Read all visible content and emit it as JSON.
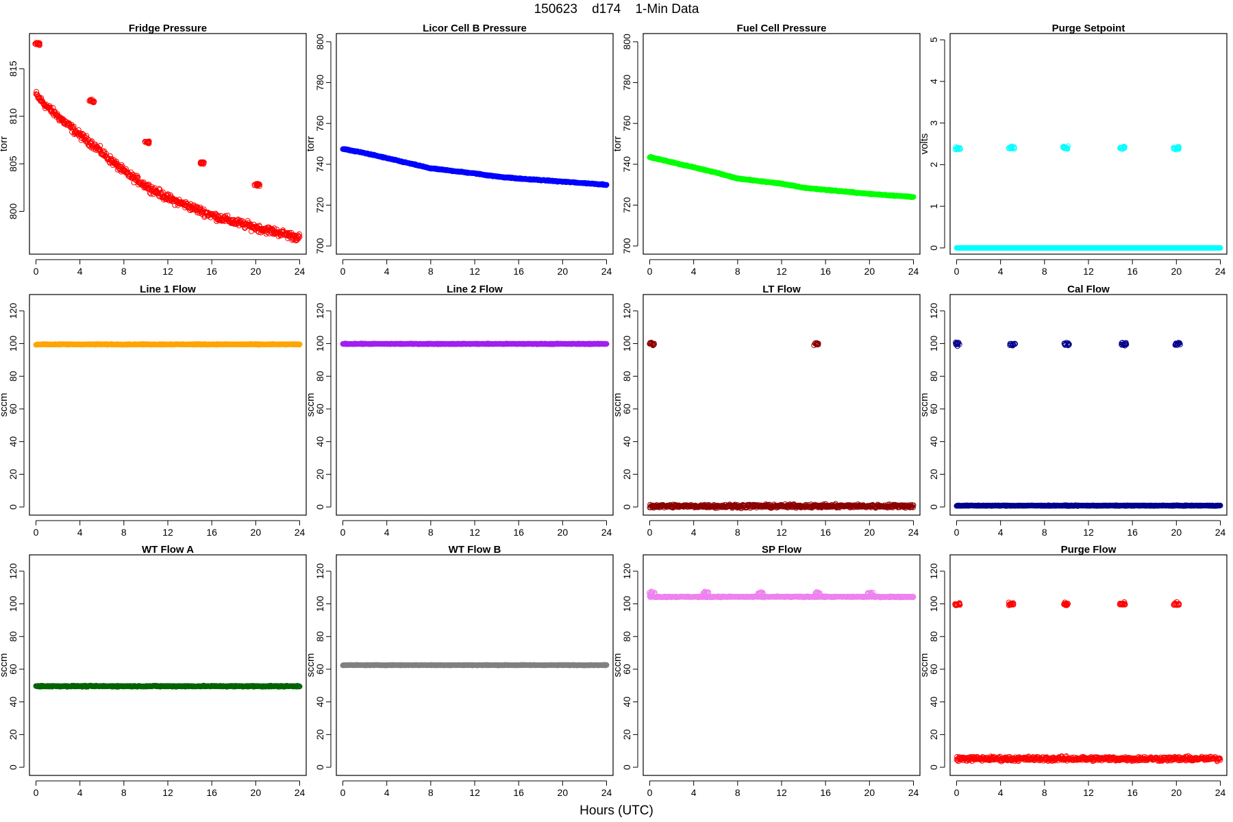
{
  "figure": {
    "title": "150623    d174    1-Min Data",
    "xlabel": "Hours (UTC)"
  },
  "chart_data": [
    {
      "type": "scatter",
      "title": "Fridge Pressure",
      "ylabel": "torr",
      "color": "#ff0000",
      "x_ticks": [
        "0",
        "4",
        "8",
        "12",
        "16",
        "20",
        "24"
      ],
      "y_ticks": [
        "800",
        "805",
        "810",
        "815"
      ],
      "xlim": [
        0,
        24
      ],
      "ylim": [
        795.5,
        818.7
      ],
      "baseline": {
        "x": [
          0,
          0.2,
          1,
          2,
          3,
          4,
          5,
          6,
          8,
          10,
          12,
          14,
          16,
          18,
          20,
          22,
          24
        ],
        "y": [
          812.3,
          812.0,
          811.0,
          810.0,
          809.0,
          808.0,
          807.2,
          806.2,
          804.2,
          802.7,
          801.4,
          800.5,
          799.6,
          798.9,
          798.3,
          797.8,
          797.2
        ]
      },
      "noise": 0.35,
      "clusters": [
        {
          "x": 0.15,
          "y": 817.6
        },
        {
          "x": 5.1,
          "y": 811.6
        },
        {
          "x": 10.1,
          "y": 807.3
        },
        {
          "x": 15.2,
          "y": 805.1
        },
        {
          "x": 20.1,
          "y": 802.8
        }
      ]
    },
    {
      "type": "scatter",
      "title": "Licor Cell B Pressure",
      "ylabel": "torr",
      "color": "#0000ff",
      "x_ticks": [
        "0",
        "4",
        "8",
        "12",
        "16",
        "20",
        "24"
      ],
      "y_ticks": [
        "700",
        "720",
        "740",
        "760",
        "780",
        "800"
      ],
      "xlim": [
        0,
        24
      ],
      "ylim": [
        696,
        804
      ],
      "baseline": {
        "x": [
          0,
          2,
          4,
          6,
          8,
          12,
          14,
          16,
          20,
          24
        ],
        "y": [
          747.5,
          745.5,
          743.0,
          740.5,
          738.0,
          735.5,
          734.0,
          733.0,
          731.5,
          730.0
        ]
      },
      "noise": 0.2,
      "clusters": []
    },
    {
      "type": "scatter",
      "title": "Fuel Cell Pressure",
      "ylabel": "torr",
      "color": "#00ff00",
      "x_ticks": [
        "0",
        "4",
        "8",
        "12",
        "16",
        "20",
        "24"
      ],
      "y_ticks": [
        "700",
        "720",
        "740",
        "760",
        "780",
        "800"
      ],
      "xlim": [
        0,
        24
      ],
      "ylim": [
        696,
        804
      ],
      "baseline": {
        "x": [
          0,
          2,
          4,
          6,
          8,
          12,
          14,
          16,
          20,
          24
        ],
        "y": [
          743.5,
          741.0,
          738.5,
          736.0,
          733.0,
          730.5,
          728.5,
          727.5,
          725.5,
          724.0
        ]
      },
      "noise": 0.2,
      "clusters": []
    },
    {
      "type": "scatter",
      "title": "Purge Setpoint",
      "ylabel": "volts",
      "color": "#00ffff",
      "x_ticks": [
        "0",
        "4",
        "8",
        "12",
        "16",
        "20",
        "24"
      ],
      "y_ticks": [
        "0",
        "1",
        "2",
        "3",
        "4",
        "5"
      ],
      "xlim": [
        0,
        24
      ],
      "ylim": [
        -0.15,
        5.15
      ],
      "baseline": {
        "x": [
          0,
          24
        ],
        "y": [
          0,
          0
        ]
      },
      "noise": 0,
      "clusters": [
        {
          "x": 0.1,
          "y": 2.38
        },
        {
          "x": 5.0,
          "y": 2.4
        },
        {
          "x": 9.9,
          "y": 2.4
        },
        {
          "x": 15.1,
          "y": 2.4
        },
        {
          "x": 20.0,
          "y": 2.4
        }
      ]
    },
    {
      "type": "scatter",
      "title": "Line 1 Flow",
      "ylabel": "sccm",
      "color": "#ffa500",
      "x_ticks": [
        "0",
        "4",
        "8",
        "12",
        "16",
        "20",
        "24"
      ],
      "y_ticks": [
        "0",
        "20",
        "40",
        "60",
        "80",
        "100",
        "120"
      ],
      "xlim": [
        0,
        24
      ],
      "ylim": [
        -5,
        130
      ],
      "baseline": {
        "x": [
          0,
          24
        ],
        "y": [
          99.5,
          99.5
        ]
      },
      "noise": 0.2,
      "clusters": []
    },
    {
      "type": "scatter",
      "title": "Line 2 Flow",
      "ylabel": "sccm",
      "color": "#a020f0",
      "x_ticks": [
        "0",
        "4",
        "8",
        "12",
        "16",
        "20",
        "24"
      ],
      "y_ticks": [
        "0",
        "20",
        "40",
        "60",
        "80",
        "100",
        "120"
      ],
      "xlim": [
        0,
        24
      ],
      "ylim": [
        -5,
        130
      ],
      "baseline": {
        "x": [
          0,
          24
        ],
        "y": [
          99.8,
          99.8
        ]
      },
      "noise": 0.2,
      "clusters": []
    },
    {
      "type": "scatter",
      "title": "LT Flow",
      "ylabel": "sccm",
      "color": "#8b0000",
      "x_ticks": [
        "0",
        "4",
        "8",
        "12",
        "16",
        "20",
        "24"
      ],
      "y_ticks": [
        "0",
        "20",
        "40",
        "60",
        "80",
        "100",
        "120"
      ],
      "xlim": [
        0,
        24
      ],
      "ylim": [
        -5,
        130
      ],
      "baseline": {
        "x": [
          0,
          24
        ],
        "y": [
          0.5,
          0.5
        ]
      },
      "noise": 0.9,
      "clusters": [
        {
          "x": 0.2,
          "y": 99.8
        },
        {
          "x": 15.2,
          "y": 99.8
        }
      ]
    },
    {
      "type": "scatter",
      "title": "Cal Flow",
      "ylabel": "sccm",
      "color": "#00008b",
      "x_ticks": [
        "0",
        "4",
        "8",
        "12",
        "16",
        "20",
        "24"
      ],
      "y_ticks": [
        "0",
        "20",
        "40",
        "60",
        "80",
        "100",
        "120"
      ],
      "xlim": [
        0,
        24
      ],
      "ylim": [
        -5,
        130
      ],
      "baseline": {
        "x": [
          0,
          24
        ],
        "y": [
          0.8,
          0.8
        ]
      },
      "noise": 0.2,
      "clusters": [
        {
          "x": 0.1,
          "y": 99.7
        },
        {
          "x": 5.1,
          "y": 99.7
        },
        {
          "x": 10.0,
          "y": 99.7
        },
        {
          "x": 15.2,
          "y": 99.7
        },
        {
          "x": 20.1,
          "y": 99.7
        }
      ]
    },
    {
      "type": "scatter",
      "title": "WT Flow A",
      "ylabel": "sccm",
      "color": "#006400",
      "x_ticks": [
        "0",
        "4",
        "8",
        "12",
        "16",
        "20",
        "24"
      ],
      "y_ticks": [
        "0",
        "20",
        "40",
        "60",
        "80",
        "100",
        "120"
      ],
      "xlim": [
        0,
        24
      ],
      "ylim": [
        -5,
        130
      ],
      "baseline": {
        "x": [
          0,
          24
        ],
        "y": [
          49.6,
          49.6
        ]
      },
      "noise": 0.3,
      "clusters": []
    },
    {
      "type": "scatter",
      "title": "WT Flow B",
      "ylabel": "sccm",
      "color": "#808080",
      "x_ticks": [
        "0",
        "4",
        "8",
        "12",
        "16",
        "20",
        "24"
      ],
      "y_ticks": [
        "0",
        "20",
        "40",
        "60",
        "80",
        "100",
        "120"
      ],
      "xlim": [
        0,
        24
      ],
      "ylim": [
        -5,
        130
      ],
      "baseline": {
        "x": [
          0,
          24
        ],
        "y": [
          62.5,
          62.5
        ]
      },
      "noise": 0.15,
      "clusters": []
    },
    {
      "type": "scatter",
      "title": "SP Flow",
      "ylabel": "sccm",
      "color": "#ee82ee",
      "x_ticks": [
        "0",
        "4",
        "8",
        "12",
        "16",
        "20",
        "24"
      ],
      "y_ticks": [
        "0",
        "20",
        "40",
        "60",
        "80",
        "100",
        "120"
      ],
      "xlim": [
        0,
        24
      ],
      "ylim": [
        -5,
        130
      ],
      "baseline": {
        "x": [
          0,
          24
        ],
        "y": [
          104.3,
          104.3
        ]
      },
      "noise": 0.3,
      "clusters": [
        {
          "x": 0.2,
          "y": 106.6
        },
        {
          "x": 5.1,
          "y": 106.6
        },
        {
          "x": 10.1,
          "y": 106.4
        },
        {
          "x": 15.3,
          "y": 106.6
        },
        {
          "x": 20.1,
          "y": 106.3
        }
      ]
    },
    {
      "type": "scatter",
      "title": "Purge Flow",
      "ylabel": "sccm",
      "color": "#ff0000",
      "x_ticks": [
        "0",
        "4",
        "8",
        "12",
        "16",
        "20",
        "24"
      ],
      "y_ticks": [
        "0",
        "20",
        "40",
        "60",
        "80",
        "100",
        "120"
      ],
      "xlim": [
        0,
        24
      ],
      "ylim": [
        -5,
        130
      ],
      "baseline": {
        "x": [
          0,
          24
        ],
        "y": [
          5.2,
          5.2
        ]
      },
      "noise": 1.2,
      "clusters": [
        {
          "x": 0.1,
          "y": 99.8
        },
        {
          "x": 5.0,
          "y": 99.9
        },
        {
          "x": 9.9,
          "y": 99.9
        },
        {
          "x": 15.1,
          "y": 99.9
        },
        {
          "x": 20.0,
          "y": 99.9
        }
      ]
    }
  ]
}
